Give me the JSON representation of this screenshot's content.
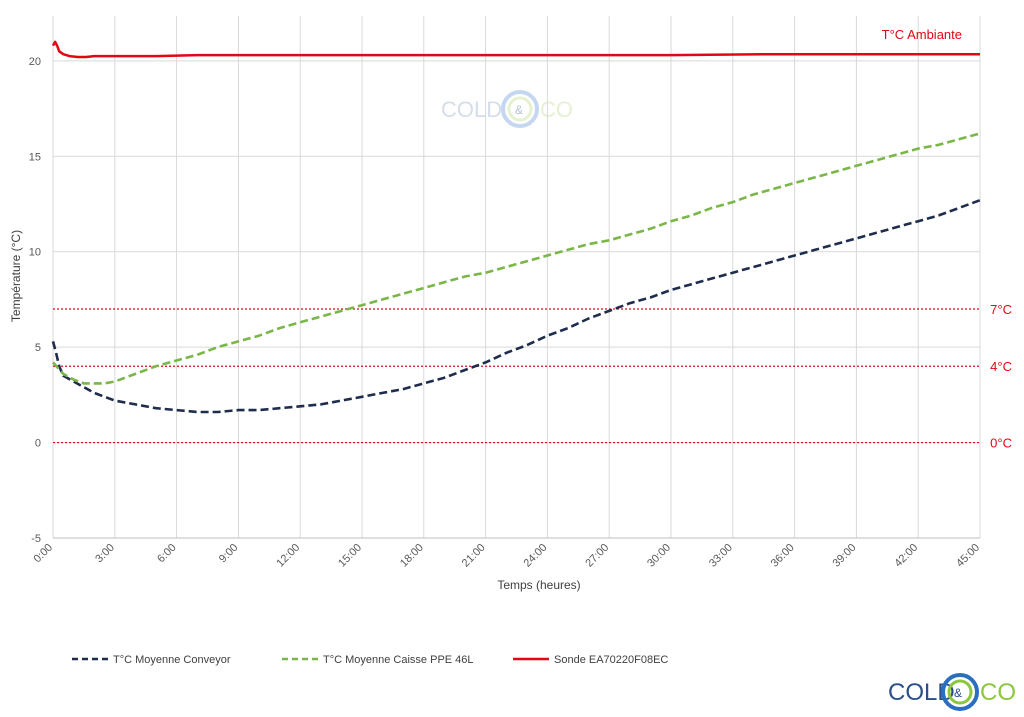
{
  "chart_data": {
    "type": "line",
    "xlabel": "Temps (heures)",
    "ylabel": "Température (°C)",
    "xlim": [
      0,
      45
    ],
    "ylim": [
      -5,
      22
    ],
    "y_ticks": [
      -5,
      0,
      5,
      10,
      15,
      20
    ],
    "x_ticks": [
      0,
      3,
      6,
      9,
      12,
      15,
      18,
      21,
      24,
      27,
      30,
      33,
      36,
      39,
      42,
      45
    ],
    "x_tick_labels": [
      "0:00",
      "3:00",
      "6:00",
      "9:00",
      "12:00",
      "15:00",
      "18:00",
      "21:00",
      "24:00",
      "27:00",
      "30:00",
      "33:00",
      "36:00",
      "39:00",
      "42:00",
      "45:00"
    ],
    "grid": true,
    "legend_position": "bottom",
    "reference_lines": [
      {
        "value": 7,
        "label": "7°C",
        "color": "#e30613"
      },
      {
        "value": 4,
        "label": "4°C",
        "color": "#e30613"
      },
      {
        "value": 0,
        "label": "0°C",
        "color": "#e30613"
      }
    ],
    "annotations": [
      {
        "text": "T°C Ambiante",
        "series": "Sonde EA70220F08EC"
      }
    ],
    "series": [
      {
        "name": "T°C Moyenne Conveyor",
        "color": "#1f2d4d",
        "dash": "dashed",
        "x": [
          0,
          0.15,
          0.3,
          0.5,
          1,
          1.5,
          2,
          3,
          4,
          5,
          6,
          7,
          8,
          9,
          10,
          11,
          12,
          13,
          14,
          15,
          16,
          17,
          18,
          19,
          20,
          21,
          22,
          23,
          24,
          25,
          26,
          27,
          28,
          29,
          30,
          31,
          32,
          33,
          34,
          35,
          36,
          37,
          38,
          39,
          40,
          41,
          42,
          43,
          44,
          45
        ],
        "y": [
          5.3,
          4.7,
          4.0,
          3.5,
          3.2,
          2.9,
          2.6,
          2.2,
          2.0,
          1.8,
          1.7,
          1.6,
          1.6,
          1.7,
          1.7,
          1.8,
          1.9,
          2.0,
          2.2,
          2.4,
          2.6,
          2.8,
          3.1,
          3.4,
          3.8,
          4.2,
          4.7,
          5.1,
          5.6,
          6.0,
          6.5,
          6.9,
          7.3,
          7.6,
          8.0,
          8.3,
          8.6,
          8.9,
          9.2,
          9.5,
          9.8,
          10.1,
          10.4,
          10.7,
          11.0,
          11.3,
          11.6,
          11.9,
          12.3,
          12.7
        ]
      },
      {
        "name": "T°C Moyenne Caisse PPE 46L",
        "color": "#7ab648",
        "dash": "dashed",
        "x": [
          0,
          0.5,
          1,
          1.5,
          2,
          2.5,
          3,
          4,
          5,
          6,
          7,
          8,
          9,
          10,
          11,
          12,
          13,
          14,
          15,
          16,
          17,
          18,
          19,
          20,
          21,
          22,
          23,
          24,
          25,
          26,
          27,
          28,
          29,
          30,
          31,
          32,
          33,
          34,
          35,
          36,
          37,
          38,
          39,
          40,
          41,
          42,
          43,
          44,
          45
        ],
        "y": [
          4.2,
          3.6,
          3.3,
          3.1,
          3.1,
          3.1,
          3.2,
          3.6,
          4.0,
          4.3,
          4.6,
          5.0,
          5.3,
          5.6,
          6.0,
          6.3,
          6.6,
          6.9,
          7.2,
          7.5,
          7.8,
          8.1,
          8.4,
          8.7,
          8.9,
          9.2,
          9.5,
          9.8,
          10.1,
          10.4,
          10.6,
          10.9,
          11.2,
          11.6,
          11.9,
          12.3,
          12.6,
          13.0,
          13.3,
          13.6,
          13.9,
          14.2,
          14.5,
          14.8,
          15.1,
          15.4,
          15.6,
          15.9,
          16.2
        ]
      },
      {
        "name": "Sonde EA70220F08EC",
        "color": "#e30613",
        "dash": "solid",
        "x": [
          0,
          0.1,
          0.2,
          0.3,
          0.5,
          0.8,
          1.2,
          1.6,
          2,
          3,
          5,
          7,
          10,
          15,
          20,
          25,
          30,
          35,
          40,
          45
        ],
        "y": [
          20.8,
          21.0,
          20.8,
          20.5,
          20.35,
          20.25,
          20.2,
          20.2,
          20.25,
          20.25,
          20.25,
          20.3,
          20.3,
          20.3,
          20.3,
          20.3,
          20.3,
          20.35,
          20.35,
          20.35
        ]
      }
    ]
  },
  "brand": {
    "logo_left": "COLD",
    "logo_mid": "&",
    "logo_right": "CO"
  }
}
